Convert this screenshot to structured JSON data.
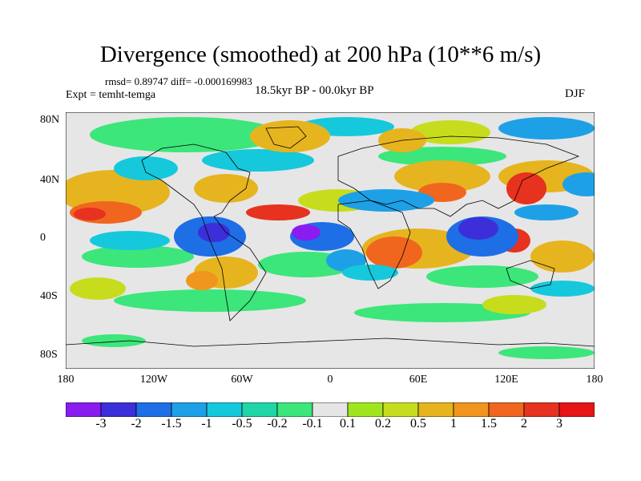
{
  "title": "Divergence (smoothed) at 200 hPa (10**6 m/s)",
  "stats": "rmsd= 0.89747  diff= -0.000169983",
  "expt": "Expt = temht-temga",
  "period": "18.5kyr BP - 00.0kyr BP",
  "season": "DJF",
  "lat_labels": [
    "80N",
    "40N",
    "0",
    "40S",
    "80S"
  ],
  "lon_labels": [
    "180",
    "120W",
    "60W",
    "0",
    "60E",
    "120E",
    "180"
  ],
  "colorbar": {
    "colors": [
      "#8a1cf0",
      "#3c2ed8",
      "#1e6ee6",
      "#1ea0e6",
      "#16c8dc",
      "#1ed6a8",
      "#3ce67a",
      "#e6e6e6",
      "#a0e61e",
      "#c8dc1e",
      "#e6b41e",
      "#f0961e",
      "#f0661e",
      "#e6321e",
      "#e61414"
    ],
    "labels": [
      "-3",
      "-2",
      "-1.5",
      "-1",
      "-0.5",
      "-0.2",
      "-0.1",
      "0.1",
      "0.2",
      "0.5",
      "1",
      "1.5",
      "2",
      "3"
    ]
  }
}
